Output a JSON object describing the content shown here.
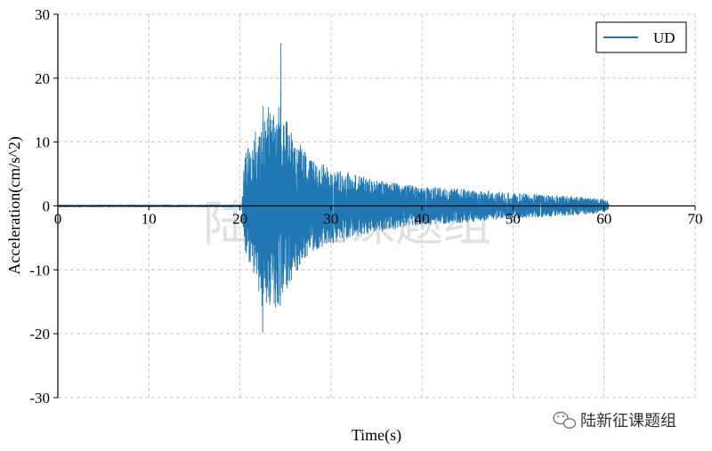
{
  "chart_data": {
    "type": "line",
    "xlabel": "Time(s)",
    "ylabel": "Acceleration(cm/s^2)",
    "xlim": [
      0,
      70
    ],
    "ylim": [
      -30,
      30
    ],
    "x_ticks": [
      "0",
      "10",
      "20",
      "30",
      "40",
      "50",
      "60",
      "70"
    ],
    "y_ticks": [
      "30",
      "20",
      "10",
      "0",
      "-10",
      "-20",
      "-30"
    ],
    "grid": true,
    "legend_position": "top-right",
    "series": [
      {
        "name": "UD",
        "color": "#1f77b4",
        "record_start": 0,
        "record_end": 60.5,
        "onset": 20.3,
        "peak_positive": {
          "x": 24.5,
          "y": 25.4
        },
        "peak_negative": {
          "x": 22.5,
          "y": -19.8
        },
        "envelope": [
          [
            0,
            0.15
          ],
          [
            20.2,
            0.15
          ],
          [
            20.5,
            8
          ],
          [
            21.5,
            11
          ],
          [
            22.5,
            16
          ],
          [
            24.5,
            16
          ],
          [
            25.5,
            12
          ],
          [
            27,
            9
          ],
          [
            28,
            7
          ],
          [
            30,
            6
          ],
          [
            35,
            4
          ],
          [
            40,
            3
          ],
          [
            45,
            2.6
          ],
          [
            50,
            2
          ],
          [
            55,
            1.6
          ],
          [
            60,
            1.1
          ],
          [
            60.5,
            0.6
          ]
        ]
      }
    ]
  },
  "watermark": {
    "center_text": "陆新征课题组",
    "corner_text": "陆新征课题组",
    "icon": "wechat-icon"
  }
}
